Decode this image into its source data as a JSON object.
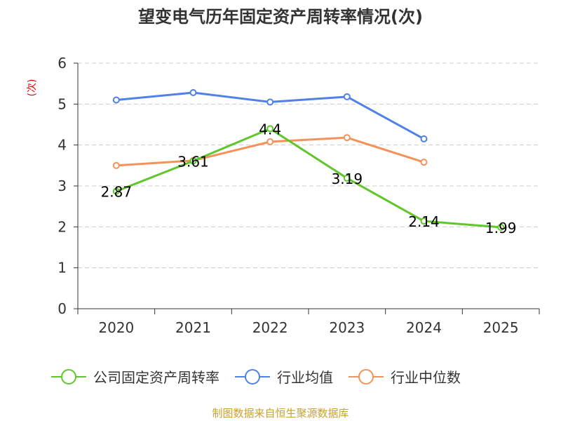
{
  "chart_data": {
    "type": "line",
    "title": "望变电气历年固定资产周转率情况(次)",
    "ylabel": "(次)",
    "xlabel": "",
    "categories": [
      "2020",
      "2021",
      "2022",
      "2023",
      "2024",
      "2025"
    ],
    "ylim": [
      0,
      6
    ],
    "yticks": [
      "0",
      "1",
      "2",
      "3",
      "4",
      "5",
      "6"
    ],
    "grid": true,
    "legend_position": "bottom",
    "series": [
      {
        "name": "公司固定资产周转率",
        "color": "#5fc72b",
        "values": [
          2.87,
          3.61,
          4.4,
          3.19,
          2.14,
          1.99
        ],
        "labels": [
          "2.87",
          "3.61",
          "4.4",
          "3.19",
          "2.14",
          "1.99"
        ],
        "show_labels": true
      },
      {
        "name": "行业均值",
        "color": "#4f81e8",
        "values": [
          5.1,
          5.28,
          5.05,
          5.18,
          4.15,
          null
        ],
        "show_labels": false
      },
      {
        "name": "行业中位数",
        "color": "#f4925a",
        "values": [
          3.5,
          3.62,
          4.08,
          4.18,
          3.58,
          null
        ],
        "show_labels": false
      }
    ]
  },
  "source": "制图数据来自恒生聚源数据库"
}
